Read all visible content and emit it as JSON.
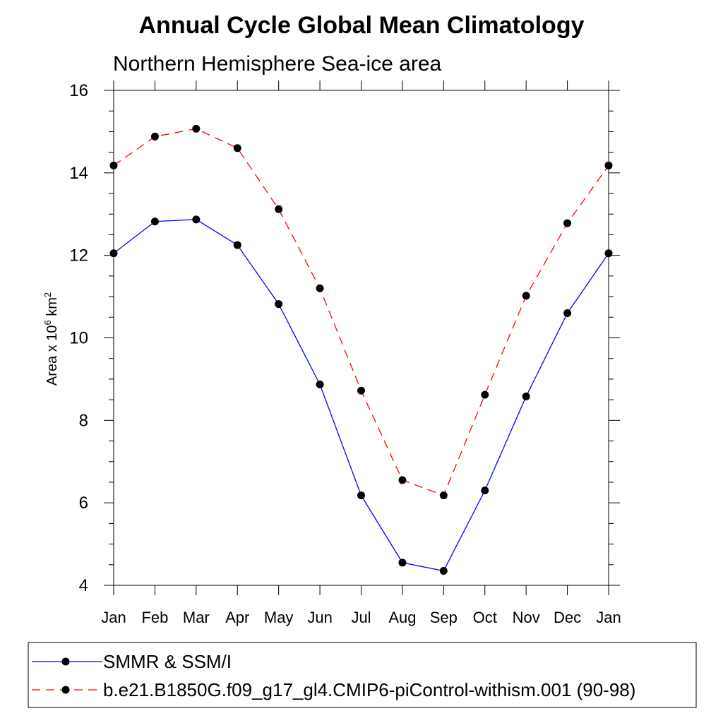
{
  "chart_data": {
    "type": "line",
    "title": "Annual Cycle Global Mean Climatology",
    "subtitle": "Northern Hemisphere Sea-ice area",
    "ylabel_main": "Area x 10",
    "ylabel_sup1": "6",
    "ylabel_unit": " km",
    "ylabel_sup2": "2",
    "xlabel": "",
    "ylim": [
      4,
      16
    ],
    "yticks": [
      4,
      6,
      8,
      10,
      12,
      14,
      16
    ],
    "categories": [
      "Jan",
      "Feb",
      "Mar",
      "Apr",
      "May",
      "Jun",
      "Jul",
      "Aug",
      "Sep",
      "Oct",
      "Nov",
      "Dec",
      "Jan"
    ],
    "grid": false,
    "legend_placement": "bottom",
    "series": [
      {
        "name": "SMMR & SSM/I",
        "color": "#0000ff",
        "dash": "solid",
        "values": [
          12.05,
          12.82,
          12.87,
          12.25,
          10.82,
          8.87,
          6.18,
          4.55,
          4.35,
          6.3,
          8.58,
          10.6,
          12.05
        ]
      },
      {
        "name": "b.e21.B1850G.f09_g17_gl4.CMIP6-piControl-withism.001 (90-98)",
        "color": "#ff0000",
        "dash": "dashed",
        "values": [
          14.18,
          14.88,
          15.07,
          14.6,
          13.12,
          11.2,
          8.72,
          6.55,
          6.18,
          8.62,
          11.02,
          12.78,
          14.18
        ]
      }
    ]
  }
}
